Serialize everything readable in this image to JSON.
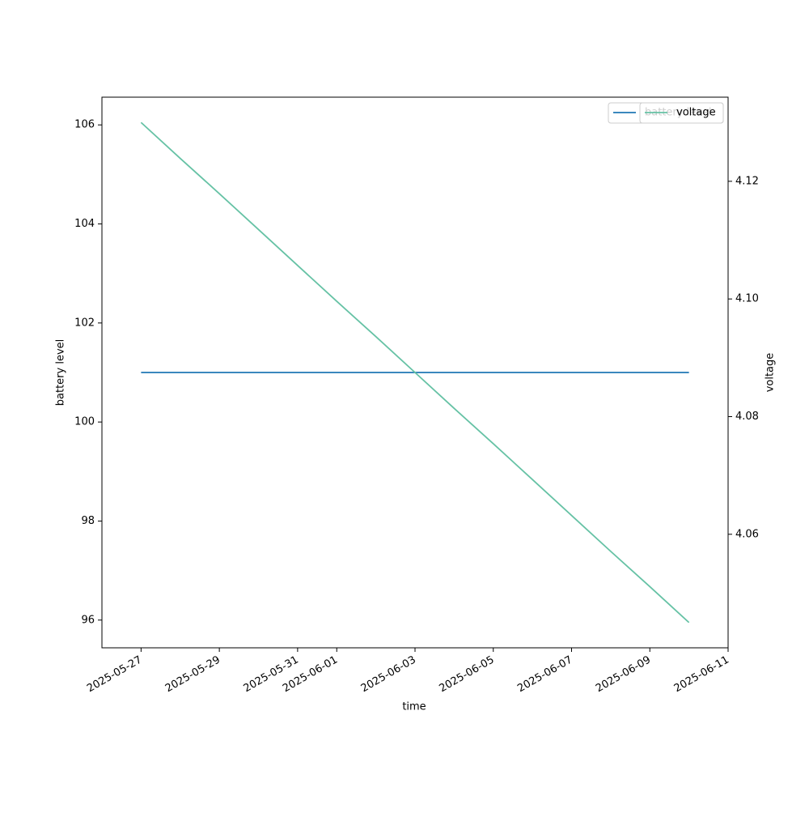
{
  "chart_data": {
    "type": "line",
    "x_label": "time",
    "y_label": "battery level",
    "y2_label": "voltage",
    "x": [
      "2025-05-27",
      "2025-05-28",
      "2025-05-29",
      "2025-05-30",
      "2025-05-31",
      "2025-06-01",
      "2025-06-02",
      "2025-06-03",
      "2025-06-04",
      "2025-06-05",
      "2025-06-06",
      "2025-06-07",
      "2025-06-08",
      "2025-06-09",
      "2025-06-10"
    ],
    "series": [
      {
        "name": "battery level",
        "color": "#1f77b4",
        "values": [
          101,
          101,
          101,
          101,
          101,
          101,
          101,
          101,
          101,
          101,
          101,
          101,
          101,
          101,
          101
        ]
      },
      {
        "name": "voltage",
        "color": "#66c2a5",
        "axis": "y2",
        "values": [
          4.13,
          4.1239,
          4.1179,
          4.1118,
          4.1057,
          4.0996,
          4.0936,
          4.0875,
          4.0814,
          4.0754,
          4.0693,
          4.0632,
          4.0571,
          4.0511,
          4.045
        ]
      }
    ],
    "xlim": [
      "2025-05-26",
      "2025-06-11"
    ],
    "xticks": [
      "2025-05-27",
      "2025-05-29",
      "2025-05-31",
      "2025-06-01",
      "2025-06-03",
      "2025-06-05",
      "2025-06-07",
      "2025-06-09",
      "2025-06-11"
    ],
    "ylim": [
      95.44,
      106.56
    ],
    "yticks": [
      96,
      98,
      100,
      102,
      104,
      106
    ],
    "y2lim": [
      4.0407,
      4.1343
    ],
    "y2ticks": [
      {
        "value": 4.06,
        "label": "4.06"
      },
      {
        "value": 4.08,
        "label": "4.08"
      },
      {
        "value": 4.1,
        "label": "4.10"
      },
      {
        "value": 4.12,
        "label": "4.12"
      }
    ],
    "legend": "upper right",
    "grid": false
  }
}
